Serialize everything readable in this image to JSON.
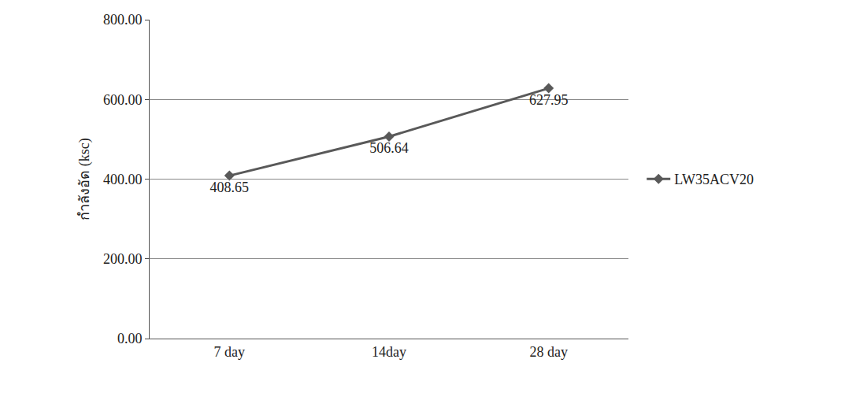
{
  "chart_data": {
    "type": "line",
    "y_label": "กำลังอัด (ksc)",
    "categories": [
      "7 day",
      "14day",
      "28 day"
    ],
    "series": [
      {
        "name": "LW35ACV20",
        "color": "#595959",
        "marker": "diamond",
        "values": [
          408.65,
          506.64,
          627.95
        ]
      }
    ],
    "ylim": [
      0,
      800
    ],
    "yticks": [
      {
        "value": 0,
        "label": "0.00"
      },
      {
        "value": 200,
        "label": "200.00"
      },
      {
        "value": 400,
        "label": "400.00"
      },
      {
        "value": 600,
        "label": "600.00"
      },
      {
        "value": 800,
        "label": "800.00"
      }
    ],
    "grid": true,
    "data_labels": true,
    "legend": "right"
  }
}
